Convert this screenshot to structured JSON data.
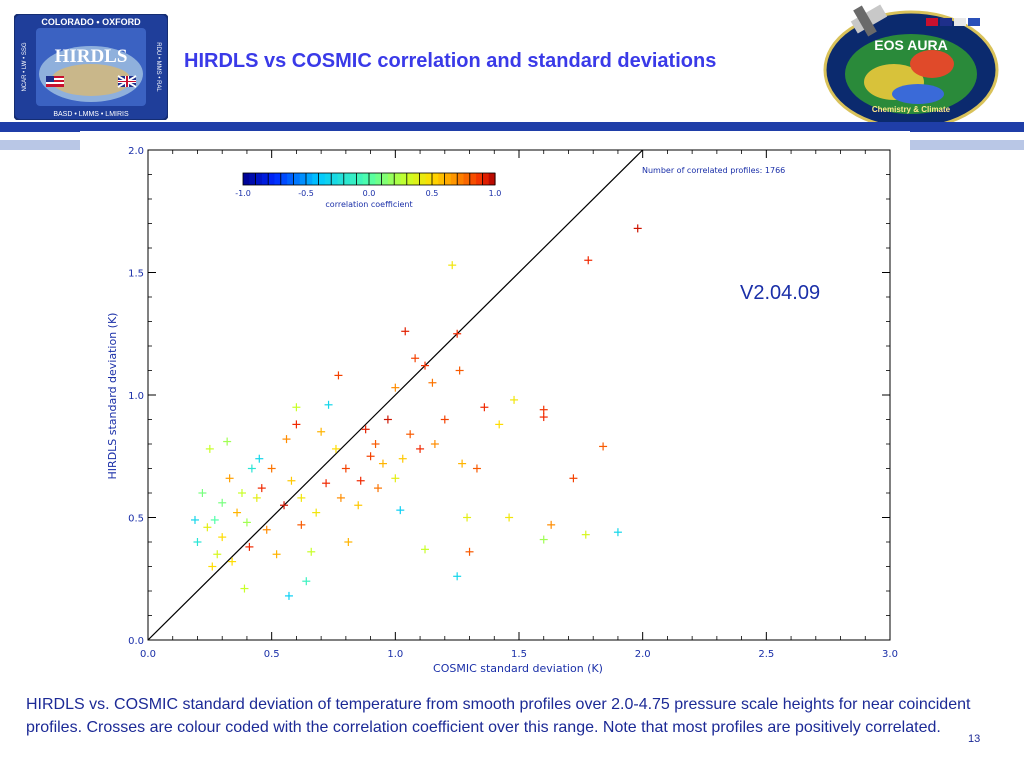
{
  "slide": {
    "title": "HIRDLS vs COSMIC correlation and standard deviations",
    "version": "V2.04.09",
    "caption": "HIRDLS vs. COSMIC standard deviation of temperature from smooth profiles over 2.0-4.75 pressure scale heights for near coincident profiles. Crosses are colour coded with the correlation coefficient over this range. Note that most profiles are positively correlated.",
    "page_number": "13"
  },
  "logos": {
    "left": {
      "top_text": "COLORADO • OXFORD",
      "center_text": "HIRDLS",
      "bottom_text": "BASD • LMMS • LMIRIS",
      "left_side_text": "NCAR • LW • SSG",
      "right_side_text": "RDU • MMS • RAL"
    },
    "right": {
      "title": "EOS AURA",
      "subtitle": "Chemistry & Climate"
    }
  },
  "colors": {
    "title": "#3a3ae8",
    "band": "#1f3ea8",
    "band_light": "#b9c7e6",
    "text_blue": "#1c2a96",
    "axis_text": "#1a2fa8"
  },
  "chart_data": {
    "type": "scatter",
    "xlabel": "COSMIC standard deviation (K)",
    "ylabel": "HIRDLS standard deviation (K)",
    "xlim": [
      0.0,
      3.0
    ],
    "ylim": [
      0.0,
      2.0
    ],
    "xticks": [
      "0.0",
      "0.5",
      "1.0",
      "1.5",
      "2.0",
      "2.5",
      "3.0"
    ],
    "yticks": [
      "0.0",
      "0.5",
      "1.0",
      "1.5",
      "2.0"
    ],
    "annotation": "Number of correlated profiles: 1766",
    "one_to_one_line": true,
    "colorbar": {
      "label": "correlation coefficient",
      "ticks": [
        "-1.0",
        "-0.5",
        "0.0",
        "0.5",
        "1.0"
      ],
      "range": [
        -1.0,
        1.0
      ]
    },
    "points": [
      {
        "x": 1.98,
        "y": 1.68,
        "c": 0.95
      },
      {
        "x": 1.78,
        "y": 1.55,
        "c": 0.9
      },
      {
        "x": 1.23,
        "y": 1.53,
        "c": 0.45
      },
      {
        "x": 1.04,
        "y": 1.26,
        "c": 0.92
      },
      {
        "x": 1.25,
        "y": 1.25,
        "c": 0.9
      },
      {
        "x": 1.08,
        "y": 1.15,
        "c": 0.85
      },
      {
        "x": 1.12,
        "y": 1.12,
        "c": 0.88
      },
      {
        "x": 1.26,
        "y": 1.1,
        "c": 0.8
      },
      {
        "x": 0.77,
        "y": 1.08,
        "c": 0.85
      },
      {
        "x": 1.15,
        "y": 1.05,
        "c": 0.75
      },
      {
        "x": 1.0,
        "y": 1.03,
        "c": 0.7
      },
      {
        "x": 1.36,
        "y": 0.95,
        "c": 0.9
      },
      {
        "x": 1.48,
        "y": 0.98,
        "c": 0.45
      },
      {
        "x": 1.6,
        "y": 0.94,
        "c": 0.88
      },
      {
        "x": 1.6,
        "y": 0.91,
        "c": 0.9
      },
      {
        "x": 1.42,
        "y": 0.88,
        "c": 0.5
      },
      {
        "x": 0.6,
        "y": 0.95,
        "c": 0.3
      },
      {
        "x": 0.73,
        "y": 0.96,
        "c": -0.3
      },
      {
        "x": 1.84,
        "y": 0.79,
        "c": 0.8
      },
      {
        "x": 1.72,
        "y": 0.66,
        "c": 0.85
      },
      {
        "x": 1.33,
        "y": 0.7,
        "c": 0.8
      },
      {
        "x": 1.27,
        "y": 0.72,
        "c": 0.6
      },
      {
        "x": 1.29,
        "y": 0.5,
        "c": 0.4
      },
      {
        "x": 1.46,
        "y": 0.5,
        "c": 0.45
      },
      {
        "x": 1.63,
        "y": 0.47,
        "c": 0.7
      },
      {
        "x": 1.6,
        "y": 0.41,
        "c": 0.2
      },
      {
        "x": 1.77,
        "y": 0.43,
        "c": 0.35
      },
      {
        "x": 1.9,
        "y": 0.44,
        "c": -0.3
      },
      {
        "x": 1.3,
        "y": 0.36,
        "c": 0.8
      },
      {
        "x": 1.12,
        "y": 0.37,
        "c": 0.3
      },
      {
        "x": 1.25,
        "y": 0.26,
        "c": -0.3
      },
      {
        "x": 0.57,
        "y": 0.18,
        "c": -0.35
      },
      {
        "x": 0.64,
        "y": 0.24,
        "c": -0.1
      },
      {
        "x": 0.81,
        "y": 0.4,
        "c": 0.6
      },
      {
        "x": 0.39,
        "y": 0.21,
        "c": 0.3
      },
      {
        "x": 0.27,
        "y": 0.49,
        "c": 0.0
      },
      {
        "x": 0.19,
        "y": 0.49,
        "c": -0.3
      },
      {
        "x": 0.2,
        "y": 0.4,
        "c": -0.2
      },
      {
        "x": 0.22,
        "y": 0.6,
        "c": 0.1
      },
      {
        "x": 0.25,
        "y": 0.78,
        "c": 0.3
      },
      {
        "x": 0.32,
        "y": 0.81,
        "c": 0.2
      },
      {
        "x": 0.42,
        "y": 0.7,
        "c": -0.2
      },
      {
        "x": 0.45,
        "y": 0.74,
        "c": -0.3
      },
      {
        "x": 0.6,
        "y": 0.88,
        "c": 0.9
      },
      {
        "x": 0.56,
        "y": 0.82,
        "c": 0.7
      },
      {
        "x": 0.9,
        "y": 0.75,
        "c": 0.85
      },
      {
        "x": 0.95,
        "y": 0.72,
        "c": 0.6
      },
      {
        "x": 1.0,
        "y": 0.66,
        "c": 0.4
      },
      {
        "x": 1.02,
        "y": 0.53,
        "c": -0.35
      },
      {
        "x": 0.85,
        "y": 0.55,
        "c": 0.55
      },
      {
        "x": 0.68,
        "y": 0.52,
        "c": 0.45
      },
      {
        "x": 0.62,
        "y": 0.47,
        "c": 0.8
      },
      {
        "x": 0.48,
        "y": 0.45,
        "c": 0.7
      },
      {
        "x": 0.44,
        "y": 0.58,
        "c": 0.4
      },
      {
        "x": 0.36,
        "y": 0.52,
        "c": 0.6
      },
      {
        "x": 0.3,
        "y": 0.42,
        "c": 0.5
      },
      {
        "x": 0.28,
        "y": 0.35,
        "c": 0.35
      },
      {
        "x": 0.34,
        "y": 0.32,
        "c": 0.5
      },
      {
        "x": 0.41,
        "y": 0.38,
        "c": 0.9
      },
      {
        "x": 0.52,
        "y": 0.35,
        "c": 0.6
      },
      {
        "x": 0.66,
        "y": 0.36,
        "c": 0.3
      },
      {
        "x": 0.72,
        "y": 0.64,
        "c": 0.9
      },
      {
        "x": 0.8,
        "y": 0.7,
        "c": 0.85
      },
      {
        "x": 0.88,
        "y": 0.86,
        "c": 0.92
      },
      {
        "x": 0.97,
        "y": 0.9,
        "c": 0.95
      },
      {
        "x": 1.06,
        "y": 0.84,
        "c": 0.8
      },
      {
        "x": 1.1,
        "y": 0.78,
        "c": 0.9
      },
      {
        "x": 1.16,
        "y": 0.8,
        "c": 0.7
      },
      {
        "x": 1.2,
        "y": 0.9,
        "c": 0.85
      },
      {
        "x": 0.93,
        "y": 0.62,
        "c": 0.75
      },
      {
        "x": 0.76,
        "y": 0.78,
        "c": 0.5
      },
      {
        "x": 0.7,
        "y": 0.85,
        "c": 0.6
      },
      {
        "x": 0.58,
        "y": 0.65,
        "c": 0.55
      },
      {
        "x": 0.5,
        "y": 0.7,
        "c": 0.75
      },
      {
        "x": 0.46,
        "y": 0.62,
        "c": 0.9
      },
      {
        "x": 0.38,
        "y": 0.6,
        "c": 0.3
      },
      {
        "x": 0.33,
        "y": 0.66,
        "c": 0.65
      },
      {
        "x": 0.55,
        "y": 0.55,
        "c": 0.95
      },
      {
        "x": 0.62,
        "y": 0.58,
        "c": 0.45
      },
      {
        "x": 0.78,
        "y": 0.58,
        "c": 0.7
      },
      {
        "x": 0.86,
        "y": 0.65,
        "c": 0.9
      },
      {
        "x": 0.92,
        "y": 0.8,
        "c": 0.8
      },
      {
        "x": 1.03,
        "y": 0.74,
        "c": 0.55
      },
      {
        "x": 0.4,
        "y": 0.48,
        "c": 0.2
      },
      {
        "x": 0.3,
        "y": 0.56,
        "c": 0.1
      },
      {
        "x": 0.24,
        "y": 0.46,
        "c": 0.4
      },
      {
        "x": 0.26,
        "y": 0.3,
        "c": 0.5
      }
    ]
  }
}
